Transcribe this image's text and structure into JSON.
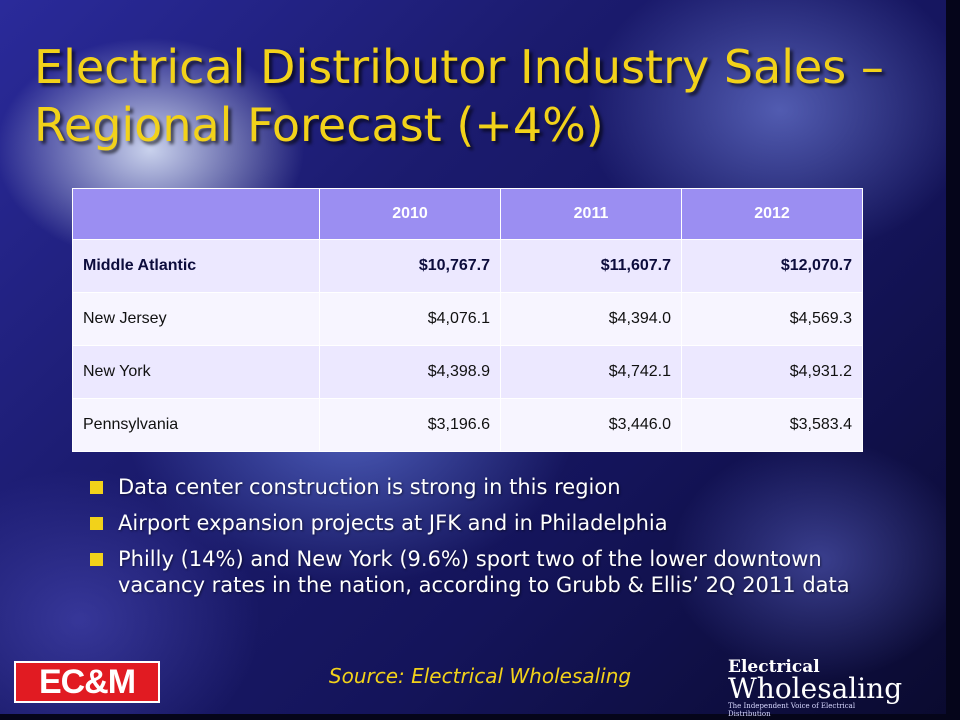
{
  "slide": {
    "title": "Electrical Distributor Industry Sales – Regional Forecast (+4%)",
    "source": "Source: Electrical Wholesaling"
  },
  "table": {
    "headers": [
      "",
      "2010",
      "2011",
      "2012"
    ],
    "rows": [
      {
        "label": "Middle Atlantic",
        "values": [
          "$10,767.7",
          "$11,607.7",
          "$12,070.7"
        ]
      },
      {
        "label": "New Jersey",
        "values": [
          "$4,076.1",
          "$4,394.0",
          "$4,569.3"
        ]
      },
      {
        "label": "New York",
        "values": [
          "$4,398.9",
          "$4,742.1",
          "$4,931.2"
        ]
      },
      {
        "label": "Pennsylvania",
        "values": [
          "$3,196.6",
          "$3,446.0",
          "$3,583.4"
        ]
      }
    ]
  },
  "bullets": [
    "Data center construction is strong in this region",
    "Airport expansion projects at JFK and in Philadelphia",
    "Philly (14%) and New York (9.6%) sport two of the lower downtown vacancy rates in the nation, according to Grubb & Ellis’ 2Q 2011 data"
  ],
  "logos": {
    "ecm": "EC&M",
    "ew_line1": "Electrical",
    "ew_line2": "Wholesaling",
    "ew_tagline": "The Independent Voice of Electrical Distribution"
  },
  "colors": {
    "title": "#f2d21a",
    "header_bg": "#9b8ef2",
    "bullet_marker": "#f2d21a",
    "ecm_red": "#e11b22"
  }
}
